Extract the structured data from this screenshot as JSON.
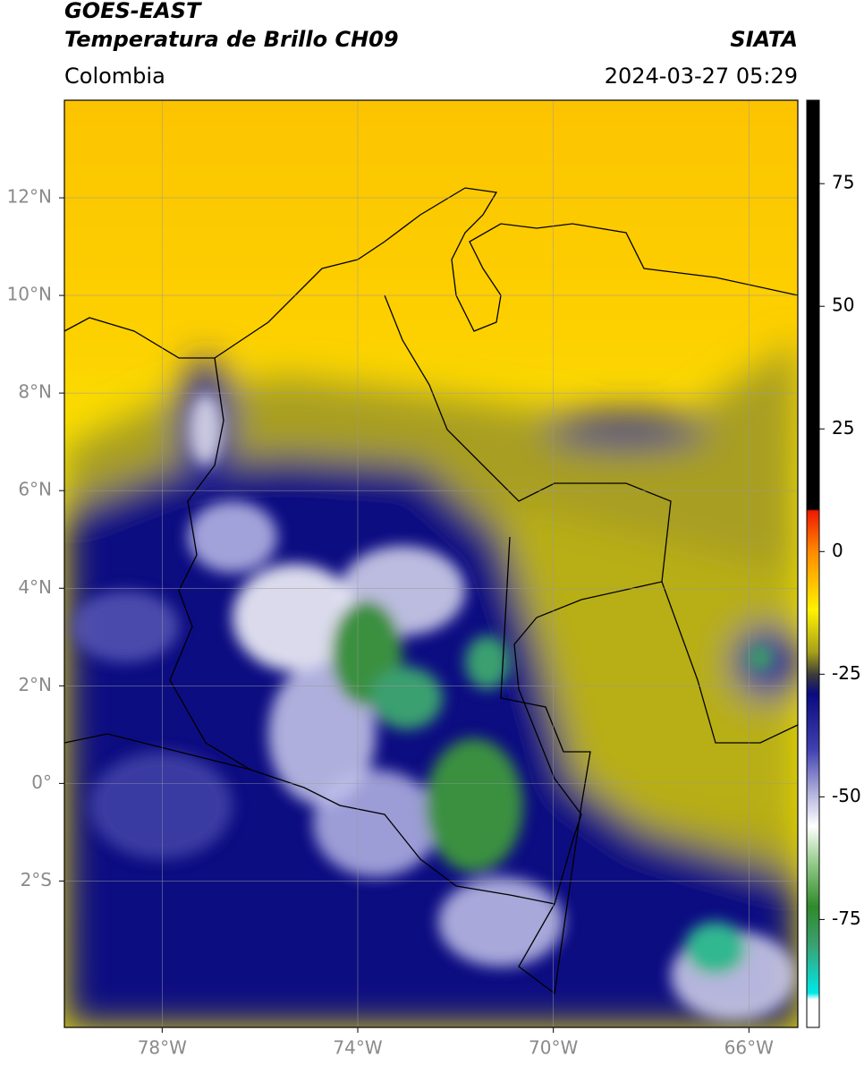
{
  "header": {
    "title": "GOES-EAST",
    "subtitle": "Temperatura de Brillo CH09",
    "brand": "SIATA",
    "region": "Colombia",
    "timestamp": "2024-03-27 05:29"
  },
  "map": {
    "lon_range": [
      -80,
      -65
    ],
    "lat_range": [
      -5,
      14
    ],
    "grid": true,
    "lon_ticks": [
      {
        "value": -78,
        "label": "78°W"
      },
      {
        "value": -74,
        "label": "74°W"
      },
      {
        "value": -70,
        "label": "70°W"
      },
      {
        "value": -66,
        "label": "66°W"
      }
    ],
    "lat_ticks": [
      {
        "value": 12,
        "label": "12°N"
      },
      {
        "value": 10,
        "label": "10°N"
      },
      {
        "value": 8,
        "label": "8°N"
      },
      {
        "value": 6,
        "label": "6°N"
      },
      {
        "value": 4,
        "label": "4°N"
      },
      {
        "value": 2,
        "label": "2°N"
      },
      {
        "value": 0,
        "label": "0°"
      },
      {
        "value": -2,
        "label": "2°S"
      }
    ]
  },
  "colorbar": {
    "range": [
      -97,
      92
    ],
    "ticks": [
      75,
      50,
      25,
      0,
      -25,
      -50,
      -75
    ]
  }
}
